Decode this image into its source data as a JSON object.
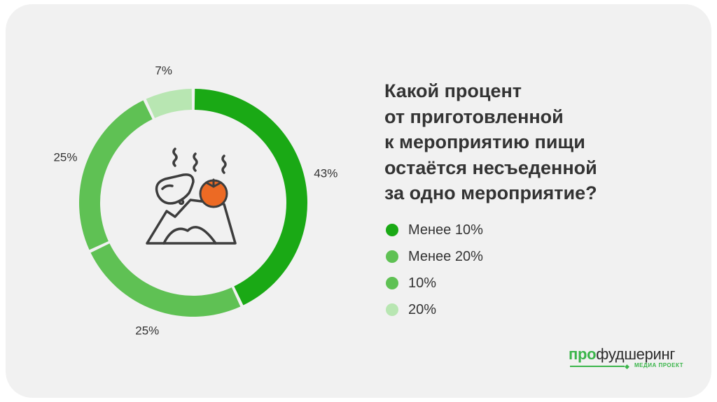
{
  "chart_data": {
    "type": "pie",
    "variant": "donut",
    "title_lines": [
      "Какой процент",
      "от приготовленной",
      "к мероприятию пищи",
      "остаётся несъеденной",
      "за одно мероприятие?"
    ],
    "slices": [
      {
        "label": "Менее 10%",
        "value": 43,
        "value_label": "43%",
        "color": "#1aa915"
      },
      {
        "label": "Менее 20%",
        "value": 25,
        "value_label": "25%",
        "color": "#5fc154"
      },
      {
        "label": "10%",
        "value": 25,
        "value_label": "25%",
        "color": "#5fc154"
      },
      {
        "label": "20%",
        "value": 7,
        "value_label": "7%",
        "color": "#b8e6b2"
      }
    ],
    "legend_position": "right",
    "center_icon": "leftover-food-icon"
  },
  "logo": {
    "part1": "про",
    "part2": "фудшеринг",
    "subtitle": "МЕДИА ПРОЕКТ"
  },
  "colors": {
    "background": "#f1f1f1",
    "text": "#333333",
    "icon_stroke": "#3d3d3d",
    "tomato": "#ec6a24",
    "brand_green": "#3ab54a"
  }
}
